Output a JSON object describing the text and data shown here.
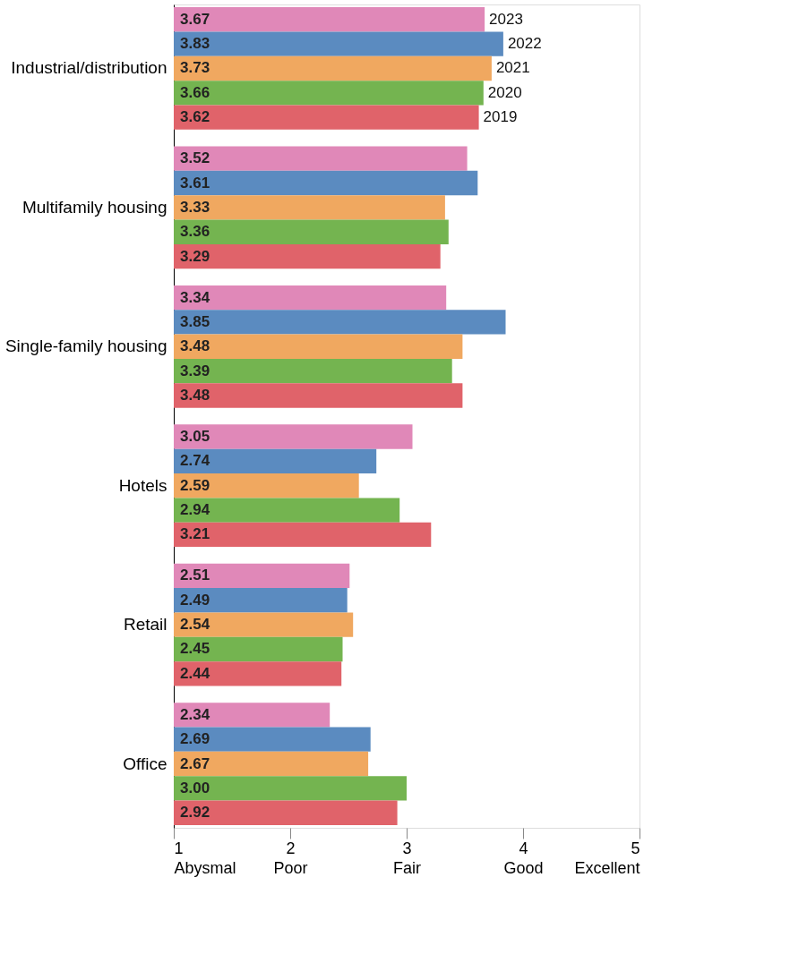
{
  "chart_data": {
    "type": "bar",
    "orientation": "horizontal",
    "categories": [
      "Industrial/distribution",
      "Multifamily housing",
      "Single-family housing",
      "Hotels",
      "Retail",
      "Office"
    ],
    "series": [
      {
        "name": "2023",
        "color": "#e088b8",
        "values": [
          3.67,
          3.52,
          3.34,
          3.05,
          2.51,
          2.34
        ]
      },
      {
        "name": "2022",
        "color": "#5b8bc0",
        "values": [
          3.83,
          3.61,
          3.85,
          2.74,
          2.49,
          2.69
        ]
      },
      {
        "name": "2021",
        "color": "#f0a860",
        "values": [
          3.73,
          3.33,
          3.48,
          2.59,
          2.54,
          2.67
        ]
      },
      {
        "name": "2020",
        "color": "#74b450",
        "values": [
          3.66,
          3.36,
          3.39,
          2.94,
          2.45,
          3.0
        ],
        "value_labels": [
          "3.66",
          "3.36",
          "3.39",
          "2.94",
          "2.45",
          "3.00"
        ]
      },
      {
        "name": "2019",
        "color": "#e0636a",
        "values": [
          3.62,
          3.29,
          3.48,
          3.21,
          2.44,
          2.92
        ]
      }
    ],
    "xlim": [
      1,
      5
    ],
    "xticks": [
      {
        "value": 1,
        "label": "1\nAbysmal"
      },
      {
        "value": 2,
        "label": "2\nPoor"
      },
      {
        "value": 3,
        "label": "3\nFair"
      },
      {
        "value": 4,
        "label": "4\nGood"
      },
      {
        "value": 5,
        "label": "5\nExcellent"
      }
    ],
    "data_labels": true,
    "legend": false,
    "grid": false
  }
}
